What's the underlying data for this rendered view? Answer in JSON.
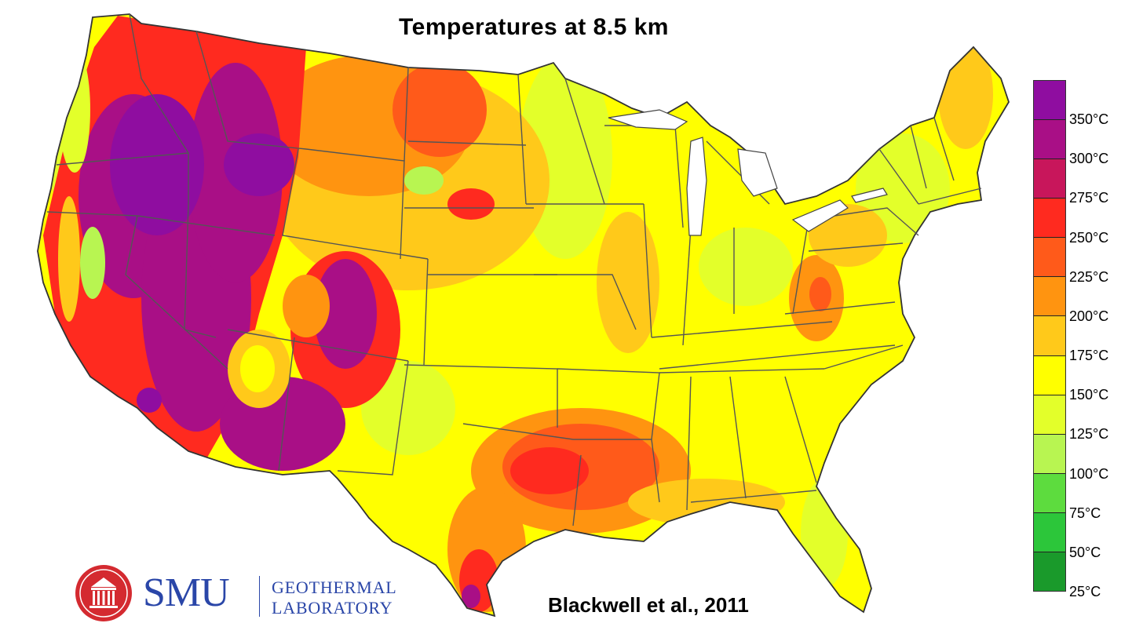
{
  "title": "Temperatures at 8.5 km",
  "credit": "Blackwell et al., 2011",
  "logo": {
    "name": "SMU",
    "dept_line1": "Geothermal",
    "dept_line2": "Laboratory",
    "dept_line1_display": "GEOTHERMAL",
    "dept_line2_display": "LABORATORY",
    "color": "#2a46a8",
    "seal_color": "#d42a30"
  },
  "legend": {
    "labels": [
      "350°C",
      "300°C",
      "275°C",
      "250°C",
      "225°C",
      "200°C",
      "175°C",
      "150°C",
      "125°C",
      "100°C",
      "75°C",
      "50°C",
      "25°C"
    ],
    "colors": [
      "#8f0da0",
      "#a90f86",
      "#c8165b",
      "#ff2a1f",
      "#ff5a1a",
      "#ff9410",
      "#ffc91a",
      "#ffff00",
      "#e3ff2a",
      "#b8f551",
      "#5ddc3e",
      "#2cc63a",
      "#1a9a2b"
    ]
  },
  "map": {
    "region": "Contiguous United States",
    "ocean": "#ffffff",
    "border_color": "#555555"
  }
}
